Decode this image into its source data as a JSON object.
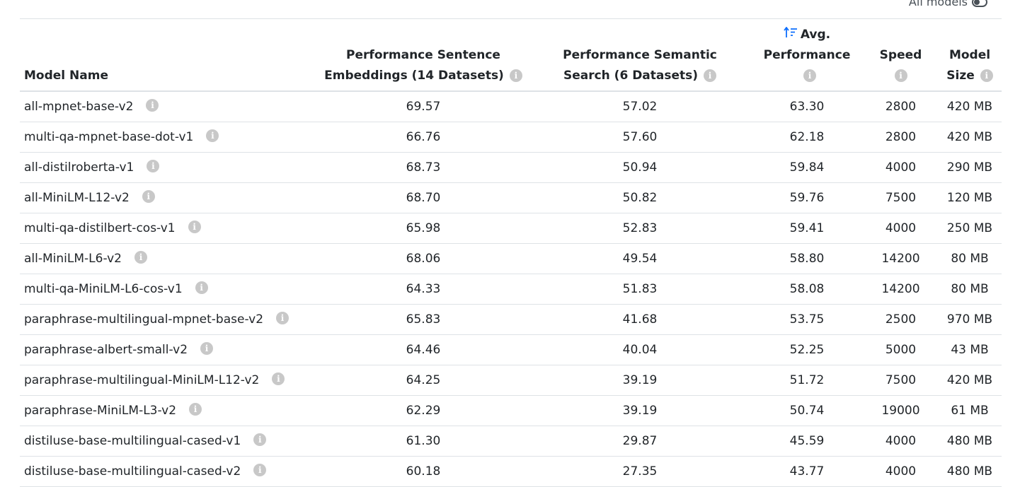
{
  "toggle": {
    "label": "All models"
  },
  "colors": {
    "accent": "#0d6efd",
    "info_icon": "#c8c8c8",
    "border": "#dee2e6"
  },
  "table": {
    "headers": {
      "name": "Model Name",
      "pse_line1": "Performance Sentence",
      "pse_line2": "Embeddings (14 Datasets)",
      "pss_line1": "Performance Semantic",
      "pss_line2": "Search (6 Datasets)",
      "avg_line1": "Avg.",
      "avg_line2": "Performance",
      "speed": "Speed",
      "size_line1": "Model",
      "size_line2": "Size"
    },
    "info_glyph": "i",
    "rows": [
      {
        "name": "all-mpnet-base-v2",
        "pse": "69.57",
        "pss": "57.02",
        "avg": "63.30",
        "speed": "2800",
        "size": "420 MB"
      },
      {
        "name": "multi-qa-mpnet-base-dot-v1",
        "pse": "66.76",
        "pss": "57.60",
        "avg": "62.18",
        "speed": "2800",
        "size": "420 MB"
      },
      {
        "name": "all-distilroberta-v1",
        "pse": "68.73",
        "pss": "50.94",
        "avg": "59.84",
        "speed": "4000",
        "size": "290 MB"
      },
      {
        "name": "all-MiniLM-L12-v2",
        "pse": "68.70",
        "pss": "50.82",
        "avg": "59.76",
        "speed": "7500",
        "size": "120 MB"
      },
      {
        "name": "multi-qa-distilbert-cos-v1",
        "pse": "65.98",
        "pss": "52.83",
        "avg": "59.41",
        "speed": "4000",
        "size": "250 MB"
      },
      {
        "name": "all-MiniLM-L6-v2",
        "pse": "68.06",
        "pss": "49.54",
        "avg": "58.80",
        "speed": "14200",
        "size": "80 MB"
      },
      {
        "name": "multi-qa-MiniLM-L6-cos-v1",
        "pse": "64.33",
        "pss": "51.83",
        "avg": "58.08",
        "speed": "14200",
        "size": "80 MB"
      },
      {
        "name": "paraphrase-multilingual-mpnet-base-v2",
        "pse": "65.83",
        "pss": "41.68",
        "avg": "53.75",
        "speed": "2500",
        "size": "970 MB"
      },
      {
        "name": "paraphrase-albert-small-v2",
        "pse": "64.46",
        "pss": "40.04",
        "avg": "52.25",
        "speed": "5000",
        "size": "43 MB"
      },
      {
        "name": "paraphrase-multilingual-MiniLM-L12-v2",
        "pse": "64.25",
        "pss": "39.19",
        "avg": "51.72",
        "speed": "7500",
        "size": "420 MB"
      },
      {
        "name": "paraphrase-MiniLM-L3-v2",
        "pse": "62.29",
        "pss": "39.19",
        "avg": "50.74",
        "speed": "19000",
        "size": "61 MB"
      },
      {
        "name": "distiluse-base-multilingual-cased-v1",
        "pse": "61.30",
        "pss": "29.87",
        "avg": "45.59",
        "speed": "4000",
        "size": "480 MB"
      },
      {
        "name": "distiluse-base-multilingual-cased-v2",
        "pse": "60.18",
        "pss": "27.35",
        "avg": "43.77",
        "speed": "4000",
        "size": "480 MB"
      }
    ]
  }
}
